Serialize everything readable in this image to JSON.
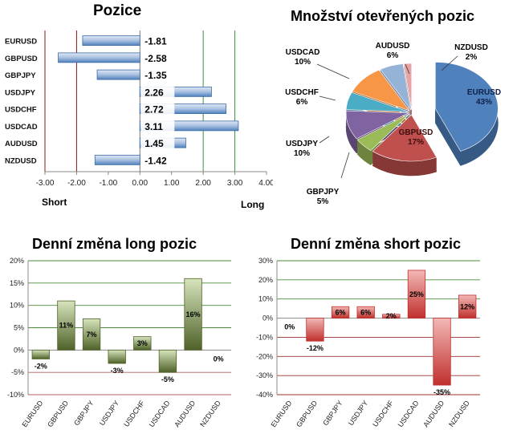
{
  "chart_data": [
    {
      "type": "bar",
      "orientation": "horizontal",
      "title": "Pozice",
      "categories": [
        "EURUSD",
        "GBPUSD",
        "GBPJPY",
        "USDJPY",
        "USDCHF",
        "USDCAD",
        "AUDUSD",
        "NZDUSD"
      ],
      "values": [
        -1.81,
        -2.58,
        -1.35,
        2.26,
        2.72,
        3.11,
        1.45,
        -1.42
      ],
      "value_labels": [
        "-1.81",
        "-2.58",
        "-1.35",
        "2.26",
        "2.72",
        "3.11",
        "1.45",
        "-1.42"
      ],
      "xlim": [
        -3,
        4
      ],
      "ticks": [
        -3,
        -2,
        -1,
        0,
        1,
        2,
        3,
        4
      ],
      "tick_labels": [
        "-3.00",
        "-2.00",
        "-1.00",
        "0.00",
        "1.00",
        "2.00",
        "3.00",
        "4.00"
      ],
      "reference_lines": [
        -3,
        -2,
        2,
        3
      ],
      "short_label": "Short",
      "long_label": "Long",
      "colors": {
        "bar": "#4f81bd",
        "bar_light": "#dfe8f5",
        "short_line": "#8b1a1a",
        "long_line": "#3f8f3f"
      }
    },
    {
      "type": "pie",
      "title": "Množství otevřených pozic",
      "labels": [
        "EURUSD",
        "GBPUSD",
        "GBPJPY",
        "USDJPY",
        "USDCHF",
        "USDCAD",
        "AUDUSD",
        "NZDUSD"
      ],
      "values": [
        43,
        17,
        5,
        10,
        6,
        10,
        6,
        2
      ],
      "value_labels": [
        "43%",
        "17%",
        "5%",
        "10%",
        "6%",
        "10%",
        "6%",
        "2%"
      ],
      "colors": [
        "#4f81bd",
        "#c0504d",
        "#9bbb59",
        "#8064a2",
        "#4bacc6",
        "#f79646",
        "#95b3d7",
        "#e6a5a5"
      ],
      "exploded": "EURUSD"
    },
    {
      "type": "bar",
      "title": "Denní změna long pozic",
      "categories": [
        "EURUSD",
        "GBPUSD",
        "GBPJPY",
        "USDJPY",
        "USDCHF",
        "USDCAD",
        "AUDUSD",
        "NZDUSD"
      ],
      "values": [
        -2,
        11,
        7,
        -3,
        3,
        -5,
        16,
        0
      ],
      "value_labels": [
        "-2%",
        "11%",
        "7%",
        "-3%",
        "3%",
        "-5%",
        "16%",
        "0%"
      ],
      "ylim": [
        -10,
        20
      ],
      "yticks": [
        -10,
        -5,
        0,
        5,
        10,
        15,
        20
      ],
      "ytick_labels": [
        "-10%",
        "-5%",
        "0%",
        "5%",
        "10%",
        "15%",
        "20%"
      ],
      "grid": true,
      "colors": {
        "bar_dark": "#4f6228",
        "bar_light": "#d7e4bd",
        "grid": "#4e8a3a"
      }
    },
    {
      "type": "bar",
      "title": "Denní změna short pozic",
      "categories": [
        "EURUSD",
        "GBPUSD",
        "GBPJPY",
        "USDJPY",
        "USDCHF",
        "USDCAD",
        "AUDUSD",
        "NZDUSD"
      ],
      "values": [
        0,
        -12,
        6,
        6,
        2,
        25,
        -35,
        12
      ],
      "value_labels": [
        "0%",
        "-12%",
        "6%",
        "6%",
        "2%",
        "25%",
        "-35%",
        "12%"
      ],
      "ylim": [
        -40,
        30
      ],
      "yticks": [
        -40,
        -30,
        -20,
        -10,
        0,
        10,
        20,
        30
      ],
      "ytick_labels": [
        "-40%",
        "-30%",
        "-20%",
        "-10%",
        "0%",
        "10%",
        "20%",
        "30%"
      ],
      "grid": true,
      "colors": {
        "bar_dark": "#c0302d",
        "bar_light": "#f2b8b6",
        "grid_pos": "#4e8a3a",
        "grid_neg": "#a03030"
      }
    }
  ]
}
